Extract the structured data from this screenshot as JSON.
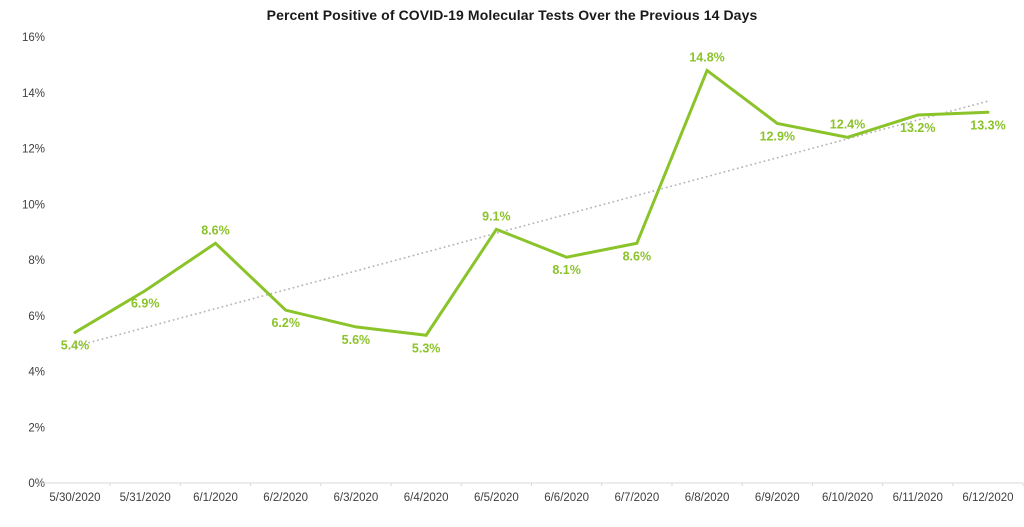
{
  "colors": {
    "series": "#8BC32B",
    "trend": "#B3B3B3",
    "axis_line": "#D9D9D9",
    "tick_text": "#3F3F3F",
    "title_text": "#1A1A1A",
    "background": "#FFFFFF"
  },
  "chart_data": {
    "type": "line",
    "title": "Percent Positive of COVID-19 Molecular Tests Over the Previous 14 Days",
    "xlabel": "",
    "ylabel": "",
    "ylim": [
      0,
      16
    ],
    "ytick_step": 2,
    "ytick_labels": [
      "0%",
      "2%",
      "4%",
      "6%",
      "8%",
      "10%",
      "12%",
      "14%",
      "16%"
    ],
    "grid": false,
    "legend_position": "none",
    "categories": [
      "5/30/2020",
      "5/31/2020",
      "6/1/2020",
      "6/2/2020",
      "6/3/2020",
      "6/4/2020",
      "6/5/2020",
      "6/6/2020",
      "6/7/2020",
      "6/8/2020",
      "6/9/2020",
      "6/10/2020",
      "6/11/2020",
      "6/12/2020"
    ],
    "series": [
      {
        "name": "Percent positive",
        "values": [
          5.4,
          6.9,
          8.6,
          6.2,
          5.6,
          5.3,
          9.1,
          8.1,
          8.6,
          14.8,
          12.9,
          12.4,
          13.2,
          13.3
        ],
        "labels": [
          "5.4%",
          "6.9%",
          "8.6%",
          "6.2%",
          "5.6%",
          "5.3%",
          "9.1%",
          "8.1%",
          "8.6%",
          "14.8%",
          "12.9%",
          "12.4%",
          "13.2%",
          "13.3%"
        ],
        "label_placement": [
          "below",
          "below",
          "above",
          "below",
          "below",
          "below",
          "above",
          "below",
          "below",
          "above",
          "below",
          "above",
          "below",
          "below"
        ]
      },
      {
        "name": "Linear trend",
        "style": "dotted",
        "endpoints": [
          4.9,
          13.7
        ]
      }
    ]
  }
}
